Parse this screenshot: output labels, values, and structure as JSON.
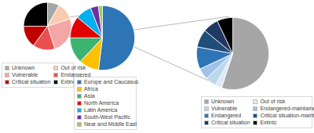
{
  "chart_data": [
    {
      "type": "pie",
      "categories": [
        "Unknown",
        "Out of risk",
        "Vulnerable",
        "Endangered",
        "Critical situation",
        "Extinct"
      ],
      "values": [
        8,
        12,
        25,
        15,
        15,
        25
      ],
      "colors": [
        "#a6a6a6",
        "#f8cbad",
        "#f4a6a6",
        "#e8504f",
        "#c00000",
        "#000000"
      ],
      "legend": "bottom"
    },
    {
      "type": "pie",
      "categories": [
        "Europe and Caucasus",
        "Africa",
        "Asia",
        "North America",
        "Latin America",
        "South-West Pacific",
        "Near and Middle East"
      ],
      "values": [
        52,
        10,
        13,
        11,
        8,
        4,
        2
      ],
      "colors": [
        "#2e75b6",
        "#ffc000",
        "#3cb371",
        "#e00000",
        "#00b0f0",
        "#7030a0",
        "#92d050"
      ],
      "legend": "bottom"
    },
    {
      "type": "pie",
      "categories": [
        "Unknown",
        "Out of risk",
        "Vulnerable",
        "Endangered-maintained",
        "Endangered",
        "Critical situation-maintained",
        "Critical situation",
        "Extintc"
      ],
      "values": [
        55,
        3,
        5,
        5,
        10,
        8,
        7,
        7
      ],
      "colors": [
        "#a6a6a6",
        "#deebf7",
        "#bdd7ee",
        "#9dc3e6",
        "#2e75b6",
        "#1f4e79",
        "#203864",
        "#000000"
      ],
      "legend": "bottom"
    }
  ]
}
